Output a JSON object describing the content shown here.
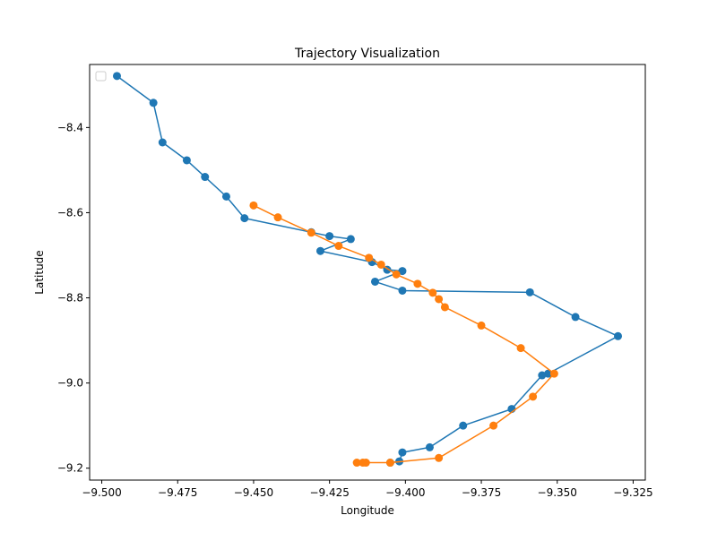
{
  "chart_data": {
    "type": "line",
    "title": "Trajectory Visualization",
    "xlabel": "Longitude",
    "ylabel": "Latitude",
    "xlim": [
      -9.504,
      -9.321
    ],
    "ylim": [
      -9.228,
      -8.252
    ],
    "xticks": [
      -9.5,
      -9.475,
      -9.45,
      -9.425,
      -9.4,
      -9.375,
      -9.35,
      -9.325
    ],
    "xtick_labels": [
      "−9.500",
      "−9.475",
      "−9.450",
      "−9.425",
      "−9.400",
      "−9.375",
      "−9.350",
      "−9.325"
    ],
    "yticks": [
      -8.4,
      -8.6,
      -8.8,
      -9.0,
      -9.2
    ],
    "ytick_labels": [
      "−8.4",
      "−8.6",
      "−8.8",
      "−9.0",
      "−9.2"
    ],
    "grid": false,
    "legend": {
      "placement": "upper-left",
      "entries": []
    },
    "series": [
      {
        "color": "#1f77b4",
        "marker": "circle",
        "points": [
          [
            -9.495,
            -8.279
          ],
          [
            -9.483,
            -8.342
          ],
          [
            -9.48,
            -8.435
          ],
          [
            -9.472,
            -8.477
          ],
          [
            -9.466,
            -8.516
          ],
          [
            -9.459,
            -8.562
          ],
          [
            -9.453,
            -8.613
          ],
          [
            -9.431,
            -8.646
          ],
          [
            -9.425,
            -8.655
          ],
          [
            -9.418,
            -8.662
          ],
          [
            -9.428,
            -8.69
          ],
          [
            -9.411,
            -8.716
          ],
          [
            -9.406,
            -8.734
          ],
          [
            -9.401,
            -8.737
          ],
          [
            -9.41,
            -8.762
          ],
          [
            -9.401,
            -8.783
          ],
          [
            -9.359,
            -8.787
          ],
          [
            -9.344,
            -8.845
          ],
          [
            -9.33,
            -8.89
          ],
          [
            -9.353,
            -8.978
          ],
          [
            -9.355,
            -8.982
          ],
          [
            -9.365,
            -9.061
          ],
          [
            -9.381,
            -9.1
          ],
          [
            -9.392,
            -9.151
          ],
          [
            -9.401,
            -9.163
          ],
          [
            -9.402,
            -9.184
          ],
          [
            -9.405,
            -9.187
          ]
        ]
      },
      {
        "color": "#ff7f0e",
        "marker": "circle",
        "points": [
          [
            -9.45,
            -8.583
          ],
          [
            -9.442,
            -8.611
          ],
          [
            -9.431,
            -8.647
          ],
          [
            -9.422,
            -8.678
          ],
          [
            -9.412,
            -8.706
          ],
          [
            -9.408,
            -8.722
          ],
          [
            -9.403,
            -8.745
          ],
          [
            -9.396,
            -8.767
          ],
          [
            -9.391,
            -8.788
          ],
          [
            -9.389,
            -8.803
          ],
          [
            -9.387,
            -8.822
          ],
          [
            -9.375,
            -8.865
          ],
          [
            -9.362,
            -8.918
          ],
          [
            -9.351,
            -8.978
          ],
          [
            -9.358,
            -9.032
          ],
          [
            -9.371,
            -9.1
          ],
          [
            -9.389,
            -9.176
          ],
          [
            -9.405,
            -9.187
          ],
          [
            -9.413,
            -9.187
          ],
          [
            -9.414,
            -9.187
          ],
          [
            -9.416,
            -9.187
          ]
        ]
      }
    ]
  }
}
